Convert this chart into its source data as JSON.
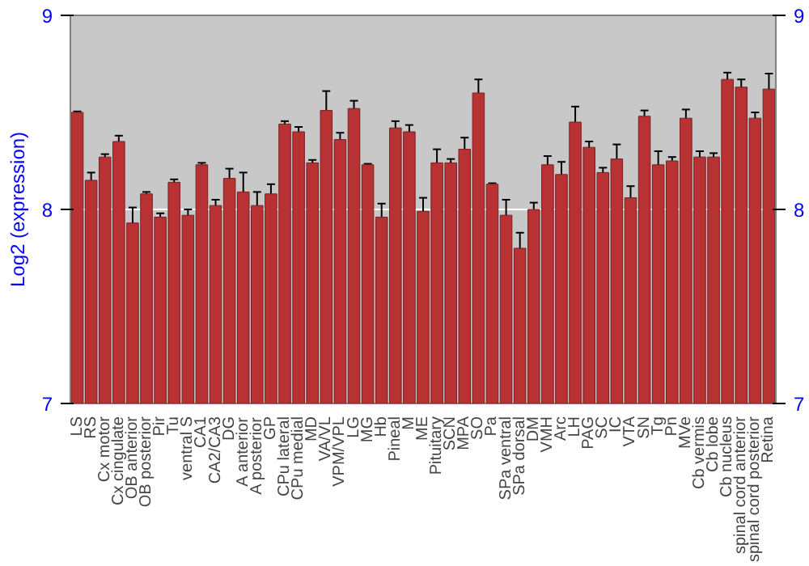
{
  "chart_data": {
    "type": "bar",
    "ylabel": "Log2 (expression)",
    "categories": [
      "LS",
      "RS",
      "Cx motor",
      "Cx cingulate",
      "OB anterior",
      "OB posterior",
      "Pir",
      "Tu",
      "ventral S",
      "CA1",
      "CA2/CA3",
      "DG",
      "A anterior",
      "A posterior",
      "GP",
      "CPu lateral",
      "CPu medial",
      "MD",
      "VA/VL",
      "VPM/VPL",
      "LG",
      "MG",
      "Hb",
      "Pineal",
      "M",
      "ME",
      "Pituitary",
      "SCN",
      "MPA",
      "SO",
      "Pa",
      "SPa ventral",
      "SPa dorsal",
      "DM",
      "VMH",
      "Arc",
      "LH",
      "PAG",
      "SC",
      "IC",
      "VTA",
      "SN",
      "Tg",
      "Pn",
      "MVe",
      "Cb vermis",
      "Cb lobe",
      "Cb nucleus",
      "spinal cord anterior",
      "spinal cord posterior",
      "Retina"
    ],
    "values": [
      8.5,
      8.15,
      8.27,
      8.35,
      7.93,
      8.08,
      7.96,
      8.14,
      7.97,
      8.23,
      8.02,
      8.16,
      8.09,
      8.02,
      8.08,
      8.44,
      8.4,
      8.24,
      8.51,
      8.36,
      8.52,
      8.23,
      7.96,
      8.42,
      8.4,
      7.99,
      8.24,
      8.24,
      8.31,
      8.6,
      8.13,
      7.97,
      7.8,
      8.0,
      8.23,
      8.18,
      8.45,
      8.32,
      8.19,
      8.26,
      8.06,
      8.48,
      8.23,
      8.25,
      8.47,
      8.27,
      8.27,
      8.67,
      8.63,
      8.47,
      8.62
    ],
    "errors": [
      0.005,
      0.04,
      0.015,
      0.03,
      0.08,
      0.01,
      0.02,
      0.015,
      0.03,
      0.01,
      0.03,
      0.05,
      0.1,
      0.07,
      0.05,
      0.015,
      0.025,
      0.015,
      0.1,
      0.035,
      0.04,
      0.005,
      0.07,
      0.035,
      0.035,
      0.07,
      0.07,
      0.02,
      0.06,
      0.07,
      0.005,
      0.08,
      0.08,
      0.035,
      0.045,
      0.065,
      0.08,
      0.03,
      0.025,
      0.075,
      0.06,
      0.03,
      0.07,
      0.02,
      0.045,
      0.03,
      0.02,
      0.035,
      0.04,
      0.03,
      0.08
    ],
    "color": "#b83234",
    "ylim": [
      7,
      9
    ],
    "yticks": [
      7,
      8,
      9
    ],
    "y2lim": [
      7,
      9
    ],
    "y2ticks": [
      7,
      8,
      9
    ],
    "grid": "y"
  }
}
